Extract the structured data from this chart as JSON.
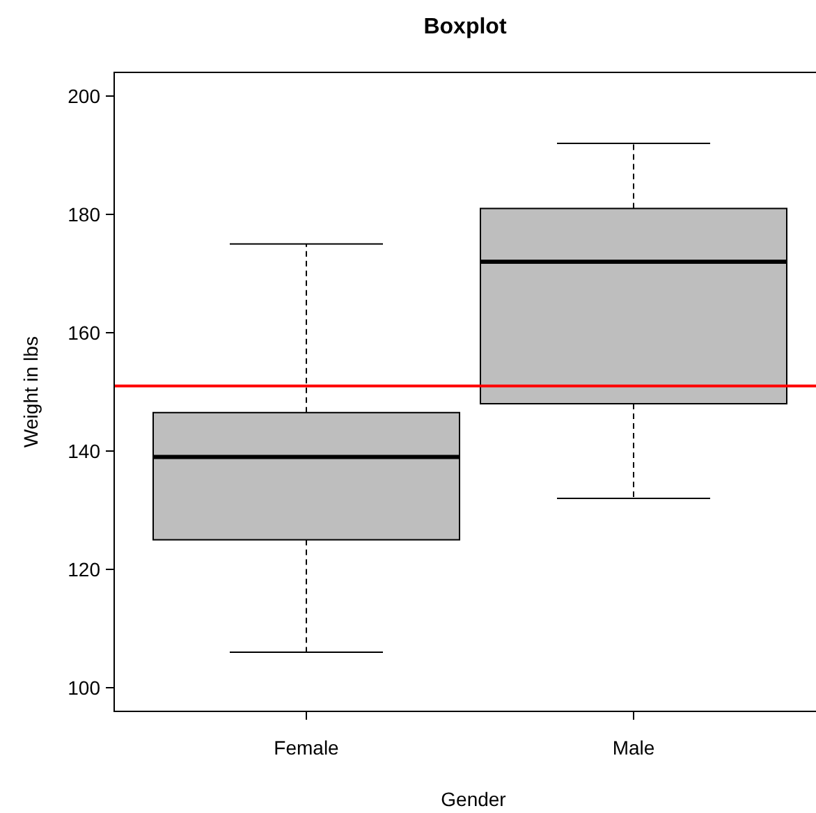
{
  "chart_data": {
    "type": "box",
    "title": "Boxplot",
    "xlabel": "Gender",
    "ylabel": "Weight in lbs",
    "categories": [
      "Female",
      "Male"
    ],
    "color": "#bebebe",
    "boxes": [
      {
        "low": 106,
        "q1": 125,
        "median": 139,
        "q3": 146.5,
        "high": 175
      },
      {
        "low": 132,
        "q1": 148,
        "median": 172,
        "q3": 181,
        "high": 192
      }
    ],
    "ylim": [
      96,
      204
    ],
    "yticks": [
      100,
      120,
      140,
      160,
      180,
      200
    ],
    "ref_lines": [
      {
        "axis": "y",
        "value": 151,
        "color": "#ff0000"
      }
    ]
  }
}
